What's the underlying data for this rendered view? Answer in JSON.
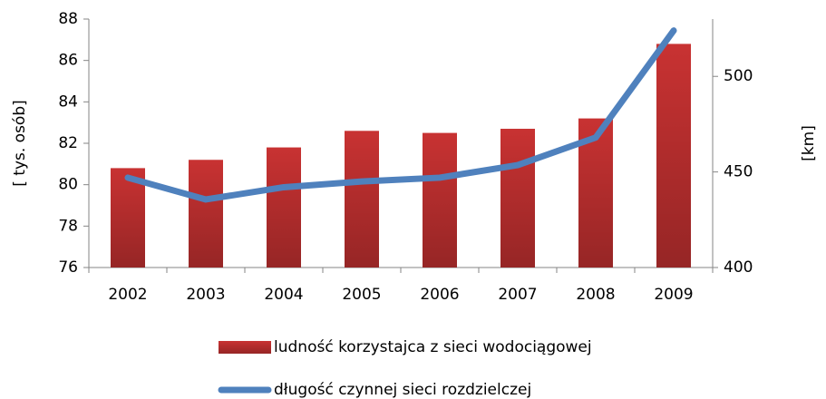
{
  "chart_data": {
    "type": "bar_line",
    "categories": [
      "2002",
      "2003",
      "2004",
      "2005",
      "2006",
      "2007",
      "2008",
      "2009"
    ],
    "series": [
      {
        "name": "ludność korzystajca z sieci wodociągowej",
        "type": "bar",
        "color": "#c83232",
        "values": [
          80.8,
          81.2,
          81.8,
          82.6,
          82.5,
          82.7,
          83.2,
          86.8
        ]
      },
      {
        "name": "długość czynnej sieci rozdzielczej",
        "type": "line",
        "axis": "y2",
        "color": "#4f81bd",
        "values": [
          447,
          435.6,
          442,
          445,
          447,
          453.6,
          468,
          524
        ]
      }
    ],
    "ylabel": "[ tys. osób]",
    "y2label": "[km]",
    "ylim": [
      76,
      88
    ],
    "yticks": [
      76,
      78,
      80,
      82,
      84,
      86,
      88
    ],
    "y2lim": [
      400,
      530
    ],
    "y2ticks": [
      400,
      450,
      500
    ],
    "legend": "bottom"
  }
}
